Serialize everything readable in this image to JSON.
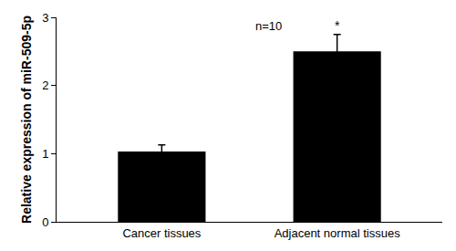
{
  "chart_data": {
    "type": "bar",
    "categories": [
      "Cancer tissues",
      "Adjacent normal tissues"
    ],
    "values": [
      1.03,
      2.5
    ],
    "errors": [
      0.1,
      0.25
    ],
    "significance": [
      null,
      "*"
    ],
    "color": "#000000",
    "y_label": "Relative expression of miR-509-5p",
    "annotations": [
      "n=10"
    ],
    "ylim": [
      0,
      3
    ],
    "yticks": [
      0,
      1,
      2,
      3
    ],
    "grid": false
  }
}
